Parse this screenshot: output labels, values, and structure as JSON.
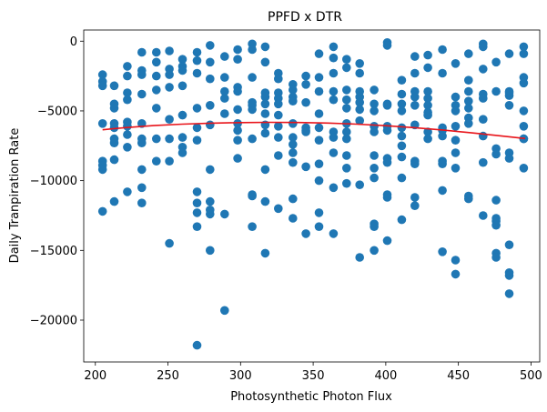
{
  "chart_data": {
    "type": "scatter",
    "title": "PPFD x DTR",
    "xlabel": "Photosynthetic Photon Flux",
    "ylabel": "Daily Tranpiration Rate",
    "xlim": [
      192,
      506
    ],
    "ylim": [
      -23000,
      800
    ],
    "xticks": [
      200,
      250,
      300,
      350,
      400,
      450,
      500
    ],
    "yticks": [
      0,
      -5000,
      -10000,
      -15000,
      -20000
    ],
    "xtick_labels": [
      "200",
      "250",
      "300",
      "350",
      "400",
      "450",
      "500"
    ],
    "ytick_labels": [
      "0",
      "−5000",
      "−10000",
      "−15000",
      "−20000"
    ],
    "grid": false,
    "colors": {
      "points": "#1f77b4",
      "fit": "#e8141a"
    },
    "fit_line": {
      "x": [
        205,
        220,
        240,
        260,
        280,
        300,
        320,
        340,
        360,
        380,
        400,
        420,
        440,
        460,
        480,
        496
      ],
      "y": [
        -6350,
        -6200,
        -6050,
        -5950,
        -5880,
        -5840,
        -5820,
        -5830,
        -5870,
        -5950,
        -6060,
        -6200,
        -6380,
        -6580,
        -6800,
        -6980
      ]
    },
    "points": {
      "x": [
        205,
        205,
        205,
        205,
        205,
        205,
        205,
        205,
        213,
        213,
        213,
        213,
        213,
        213,
        213,
        213,
        213,
        222,
        222,
        222,
        222,
        222,
        222,
        222,
        222,
        222,
        232,
        232,
        232,
        232,
        232,
        232,
        232,
        232,
        232,
        232,
        242,
        242,
        242,
        242,
        242,
        242,
        242,
        251,
        251,
        251,
        251,
        251,
        251,
        251,
        251,
        260,
        260,
        260,
        260,
        260,
        260,
        260,
        260,
        270,
        270,
        270,
        270,
        270,
        270,
        270,
        270,
        270,
        270,
        270,
        279,
        279,
        279,
        279,
        279,
        279,
        279,
        279,
        279,
        279,
        289,
        289,
        289,
        289,
        289,
        289,
        289,
        298,
        298,
        298,
        298,
        298,
        298,
        298,
        298,
        298,
        308,
        308,
        308,
        308,
        308,
        308,
        308,
        308,
        308,
        308,
        317,
        317,
        317,
        317,
        317,
        317,
        317,
        317,
        317,
        317,
        317,
        326,
        326,
        326,
        326,
        326,
        326,
        326,
        326,
        326,
        326,
        336,
        336,
        336,
        336,
        336,
        336,
        336,
        336,
        336,
        336,
        336,
        345,
        345,
        345,
        345,
        345,
        345,
        345,
        345,
        354,
        354,
        354,
        354,
        354,
        354,
        354,
        354,
        354,
        354,
        364,
        364,
        364,
        364,
        364,
        364,
        364,
        364,
        364,
        364,
        373,
        373,
        373,
        373,
        373,
        373,
        373,
        373,
        373,
        373,
        373,
        382,
        382,
        382,
        382,
        382,
        382,
        382,
        382,
        382,
        392,
        392,
        392,
        392,
        392,
        392,
        392,
        392,
        392,
        392,
        392,
        401,
        401,
        401,
        401,
        401,
        401,
        401,
        401,
        401,
        401,
        401,
        411,
        411,
        411,
        411,
        411,
        411,
        411,
        411,
        411,
        411,
        420,
        420,
        420,
        420,
        420,
        420,
        420,
        420,
        420,
        420,
        429,
        429,
        429,
        429,
        429,
        429,
        429,
        429,
        429,
        439,
        439,
        439,
        439,
        439,
        439,
        439,
        439,
        439,
        448,
        448,
        448,
        448,
        448,
        448,
        448,
        448,
        448,
        448,
        457,
        457,
        457,
        457,
        457,
        457,
        457,
        457,
        457,
        467,
        467,
        467,
        467,
        467,
        467,
        467,
        467,
        467,
        476,
        476,
        476,
        476,
        476,
        476,
        476,
        476,
        476,
        476,
        485,
        485,
        485,
        485,
        485,
        485,
        485,
        485,
        485,
        485,
        485,
        495,
        495,
        495,
        495,
        495,
        495,
        495,
        495,
        495
      ],
      "y": [
        -2400,
        -2900,
        -3200,
        -5900,
        -8600,
        -8900,
        -9200,
        -12200,
        -3200,
        -4800,
        -5900,
        -6200,
        -7000,
        -7300,
        -8500,
        -11500,
        -4500,
        -1800,
        -2500,
        -3700,
        -4200,
        -5800,
        -6100,
        -6700,
        -7600,
        -10800,
        -800,
        -2100,
        -2400,
        -3800,
        -5900,
        -7000,
        -7300,
        -9200,
        -10500,
        -11600,
        -800,
        -1500,
        -2500,
        -3500,
        -4800,
        -7000,
        -8600,
        -700,
        -2000,
        -2400,
        -3300,
        -5600,
        -7000,
        -8600,
        -14500,
        -1300,
        -1800,
        -2100,
        -3200,
        -5300,
        -6900,
        -7600,
        -8000,
        -800,
        -1400,
        -2300,
        -4800,
        -6200,
        -7100,
        -10800,
        -11600,
        -12300,
        -13300,
        -21800,
        -300,
        -1500,
        -2700,
        -4600,
        -6000,
        -9200,
        -11500,
        -12100,
        -12400,
        -15000,
        -1100,
        -2600,
        -4100,
        -5200,
        -12400,
        -19300,
        -3600,
        -600,
        -1300,
        -3300,
        -3600,
        -4900,
        -5900,
        -6400,
        -7100,
        -8400,
        -200,
        -600,
        -2600,
        -4600,
        -4900,
        -7000,
        -11000,
        -11100,
        -13300,
        -4400,
        -400,
        -1500,
        -3700,
        -4000,
        -4500,
        -5200,
        -6000,
        -6600,
        -9200,
        -11500,
        -15200,
        -2300,
        -2700,
        -3700,
        -4100,
        -4500,
        -5300,
        -6100,
        -8200,
        -12000,
        -6900,
        -3100,
        -3500,
        -4000,
        -4300,
        -5900,
        -6900,
        -7400,
        -8000,
        -8700,
        -11300,
        -12700,
        -2500,
        -3100,
        -4400,
        -6200,
        -6400,
        -9000,
        -13800,
        -6500,
        -900,
        -2600,
        -3600,
        -5200,
        -6200,
        -7100,
        -8800,
        -10000,
        -12300,
        -13300,
        -400,
        -1200,
        -2300,
        -3600,
        -4200,
        -6500,
        -6900,
        -8000,
        -10500,
        -13800,
        -1300,
        -1900,
        -3500,
        -4200,
        -4800,
        -5900,
        -6500,
        -7000,
        -8200,
        -9100,
        -10200,
        -1600,
        -2300,
        -3600,
        -4000,
        -4400,
        -4900,
        -5700,
        -10300,
        -15500,
        -3500,
        -4500,
        -5000,
        -6100,
        -6500,
        -8200,
        -9100,
        -9800,
        -13100,
        -13300,
        -15000,
        -100,
        -300,
        -4500,
        -4600,
        -6100,
        -6400,
        -8400,
        -8700,
        -11000,
        -11200,
        -14300,
        -2800,
        -3800,
        -4500,
        -5000,
        -6200,
        -6800,
        -7500,
        -8300,
        -9800,
        -12800,
        -1100,
        -2300,
        -3600,
        -4000,
        -4600,
        -6000,
        -8600,
        -8800,
        -11200,
        -11800,
        -1000,
        -1900,
        -3600,
        -4100,
        -4600,
        -5100,
        -5300,
        -6500,
        -7000,
        -600,
        -2300,
        -6200,
        -6400,
        -6800,
        -8600,
        -8800,
        -10700,
        -15100,
        -1600,
        -4000,
        -4600,
        -5000,
        -6100,
        -7100,
        -8000,
        -9100,
        -15700,
        -16700,
        -900,
        -2800,
        -3600,
        -4300,
        -4800,
        -5500,
        -5900,
        -11100,
        -11300,
        -200,
        -400,
        -2000,
        -3800,
        -4100,
        -5600,
        -6800,
        -8700,
        -12500,
        -1500,
        -3600,
        -7700,
        -8100,
        -11400,
        -12700,
        -12900,
        -13200,
        -15200,
        -15500,
        -900,
        -3600,
        -3900,
        -4600,
        -8000,
        -8400,
        -14600,
        -16600,
        -16800,
        -18100,
        -3700,
        -400,
        -900,
        -2600,
        -3000,
        -5000,
        -6100,
        -7000,
        -9100,
        -7000
      ]
    }
  }
}
